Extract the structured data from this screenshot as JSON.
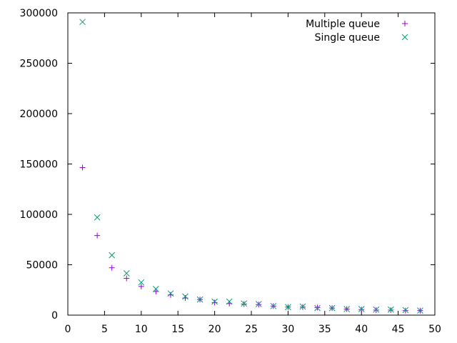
{
  "chart_data": {
    "type": "scatter",
    "title": "",
    "xlabel": "",
    "ylabel": "",
    "xlim": [
      0,
      50
    ],
    "ylim": [
      0,
      300000
    ],
    "x_ticks": [
      0,
      5,
      10,
      15,
      20,
      25,
      30,
      35,
      40,
      45,
      50
    ],
    "y_ticks": [
      0,
      50000,
      100000,
      150000,
      200000,
      250000,
      300000
    ],
    "x_tick_labels": [
      "0",
      "5",
      "10",
      "15",
      "20",
      "25",
      "30",
      "35",
      "40",
      "45",
      "50"
    ],
    "y_tick_labels": [
      "0",
      "50000",
      "100000",
      "150000",
      "200000",
      "250000",
      "300000"
    ],
    "grid": false,
    "legend_position": "top-right",
    "series": [
      {
        "name": "Multiple queue",
        "marker": "plus",
        "color": "#9400d3",
        "x": [
          2,
          4,
          6,
          8,
          10,
          12,
          14,
          16,
          18,
          20,
          22,
          24,
          26,
          28,
          30,
          32,
          34,
          36,
          38,
          40,
          42,
          44,
          46,
          48
        ],
        "y": [
          146500,
          79000,
          47000,
          36500,
          28500,
          23500,
          20000,
          17000,
          15500,
          12500,
          11500,
          11000,
          10500,
          9000,
          8000,
          8000,
          7500,
          7000,
          6000,
          5500,
          5000,
          5000,
          4500,
          4500
        ]
      },
      {
        "name": "Single queue",
        "marker": "x",
        "color": "#009e73",
        "x": [
          2,
          4,
          6,
          8,
          10,
          12,
          14,
          16,
          18,
          20,
          22,
          24,
          26,
          28,
          30,
          32,
          34,
          36,
          38,
          40,
          42,
          44,
          46,
          48
        ],
        "y": [
          291000,
          97000,
          59500,
          41500,
          32500,
          26000,
          21500,
          18500,
          15500,
          13500,
          13500,
          11500,
          11000,
          9000,
          8000,
          8500,
          7000,
          7000,
          6000,
          6000,
          5500,
          5500,
          5000,
          4500
        ]
      }
    ]
  }
}
